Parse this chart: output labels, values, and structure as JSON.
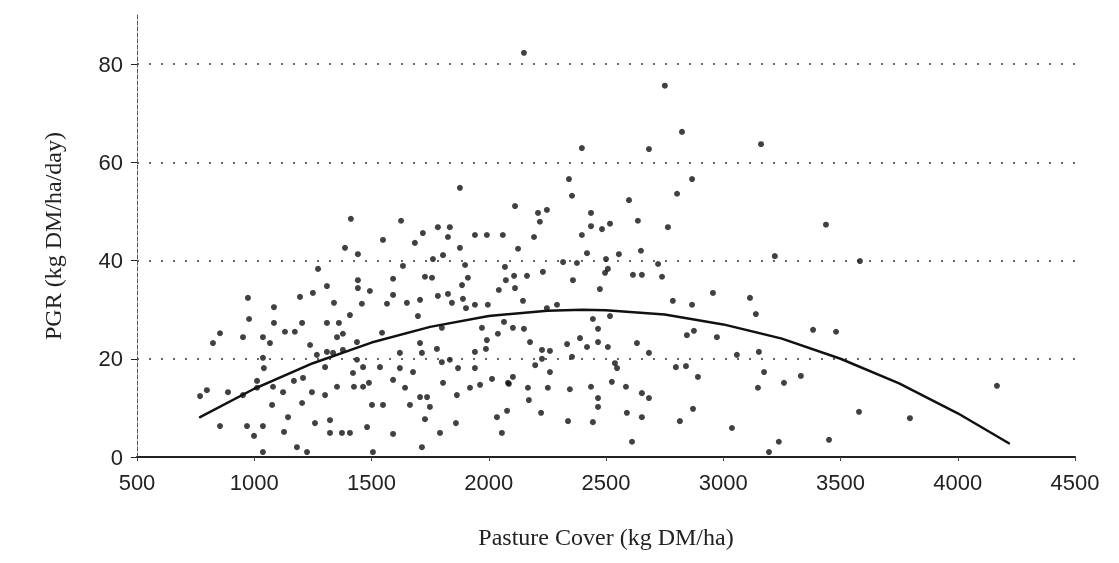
{
  "chart_data": {
    "type": "scatter",
    "xlabel": "Pasture Cover (kg DM/ha)",
    "ylabel": "PGR (kg DM/ha/day)",
    "xlim": [
      500,
      4500
    ],
    "xticks": [
      500,
      1000,
      1500,
      2000,
      2500,
      3000,
      3500,
      4000,
      4500
    ],
    "ylim": [
      0,
      90
    ],
    "yticks": [
      0,
      20,
      40,
      60,
      80
    ],
    "grid": "y",
    "series": [
      {
        "color": "#111111",
        "marker": "circle",
        "x": [
          769,
          798,
          888,
          854,
          824,
          854,
          973,
          978,
          952,
          969,
          999,
          1037,
          1037,
          1037,
          1041,
          1037,
          1076,
          1084,
          1084,
          1131,
          1173,
          1204,
          1195,
          1127,
          1144,
          1182,
          1225,
          1250,
          1272,
          1310,
          1340,
          1310,
          1361,
          1378,
          1259,
          1323,
          1323,
          1374,
          1408,
          1481,
          1506,
          1592,
          1715,
          1792,
          1728,
          1664,
          1707,
          1749,
          1549,
          1502,
          1464,
          1425,
          1353,
          1302,
          1246,
          1204,
          1080,
          1408,
          1387,
          1412,
          1442,
          1442,
          1442,
          1459,
          1493,
          1549,
          1566,
          1592,
          1592,
          1545,
          1438,
          1438,
          1421,
          1464,
          1536,
          1592,
          1621,
          1677,
          1643,
          1621,
          1634,
          1626,
          1685,
          1719,
          1783,
          1834,
          1826,
          1805,
          1877,
          1877,
          1762,
          1651,
          1707,
          1698,
          1728,
          1758,
          1783,
          1826,
          1843,
          1886,
          1899,
          1911,
          1890,
          1903,
          1800,
          1707,
          1715,
          1779,
          1800,
          1834,
          1869,
          1941,
          1941,
          1988,
          1992,
          1971,
          2039,
          2069,
          2073,
          2043,
          1941,
          1992,
          2060,
          1941,
          1996,
          2082,
          1920,
          1963,
          2014,
          1805,
          1864,
          2035,
          2056,
          1860,
          1737,
          1489,
          1169,
          1123,
          1012,
          952,
          1012,
          1208,
          1267,
          1238,
          1310,
          1336,
          1378,
          1302,
          1067,
          1353,
          2150,
          2751,
          2824,
          3161,
          2397,
          2683,
          2342,
          2867,
          2355,
          2803,
          2112,
          2598,
          2210,
          2248,
          2218,
          2436,
          2636,
          2764,
          2436,
          2483,
          2517,
          2397,
          2193,
          2125,
          2419,
          2555,
          2649,
          2317,
          2376,
          2500,
          2722,
          3220,
          2231,
          2163,
          2108,
          2359,
          2508,
          2496,
          2615,
          2653,
          2739,
          2112,
          2474,
          2146,
          2785,
          2956,
          3114,
          2867,
          2248,
          2291,
          3139,
          2517,
          2444,
          2065,
          2466,
          2103,
          2150,
          2845,
          2875,
          2973,
          2176,
          2389,
          2466,
          2632,
          2334,
          2419,
          2508,
          2227,
          2261,
          2683,
          3152,
          3058,
          2355,
          2227,
          2538,
          2198,
          2547,
          2798,
          2841,
          2261,
          3174,
          3331,
          2103,
          2892,
          2525,
          2086,
          3259,
          2167,
          2252,
          2346,
          2436,
          2585,
          3148,
          2653,
          2683,
          2466,
          2171,
          2466,
          2078,
          2223,
          2589,
          2871,
          2653,
          2338,
          2444,
          2815,
          3037,
          2611,
          3237,
          3195,
          3438,
          3583,
          3383,
          3481,
          3579,
          3796,
          3451,
          4167
        ],
        "values": [
          12.4,
          13.6,
          13.2,
          6.3,
          23.2,
          25.2,
          32.4,
          28.1,
          24.4,
          6.3,
          4.3,
          6.3,
          1.0,
          20.2,
          18.1,
          24.4,
          10.6,
          30.5,
          27.3,
          25.5,
          25.5,
          27.3,
          32.6,
          5.1,
          8.1,
          2.0,
          1.0,
          33.4,
          38.3,
          34.8,
          31.4,
          27.3,
          27.3,
          25.1,
          6.9,
          7.5,
          4.9,
          4.9,
          4.9,
          6.1,
          1.0,
          4.7,
          2.0,
          4.9,
          7.7,
          10.6,
          12.2,
          10.2,
          10.6,
          10.6,
          14.3,
          14.3,
          14.3,
          12.6,
          13.2,
          11.0,
          14.3,
          28.9,
          42.6,
          48.5,
          41.3,
          36.0,
          34.4,
          31.2,
          33.8,
          44.2,
          31.2,
          33.0,
          36.3,
          25.3,
          23.4,
          19.8,
          17.1,
          18.3,
          18.3,
          15.7,
          18.1,
          17.3,
          14.1,
          21.2,
          38.9,
          48.1,
          43.6,
          45.6,
          46.8,
          46.8,
          44.8,
          41.1,
          42.6,
          54.8,
          40.3,
          31.4,
          32.0,
          28.7,
          36.7,
          36.5,
          32.8,
          33.2,
          31.4,
          35.0,
          39.1,
          36.5,
          32.2,
          30.3,
          26.3,
          23.2,
          21.2,
          22.0,
          19.3,
          19.8,
          18.1,
          21.4,
          18.1,
          22.0,
          23.8,
          26.3,
          25.1,
          38.7,
          36.0,
          34.0,
          45.2,
          45.2,
          45.2,
          31.0,
          31.0,
          15.1,
          14.1,
          14.7,
          15.9,
          15.1,
          12.6,
          8.1,
          4.9,
          6.9,
          12.2,
          15.1,
          15.5,
          13.2,
          14.1,
          12.6,
          15.5,
          16.1,
          20.8,
          22.8,
          21.4,
          21.2,
          21.8,
          18.3,
          23.2,
          24.4,
          82.3,
          75.6,
          66.2,
          63.7,
          62.9,
          62.7,
          56.6,
          56.6,
          53.2,
          53.6,
          51.1,
          52.3,
          49.7,
          50.3,
          47.9,
          49.7,
          48.1,
          46.8,
          47.0,
          46.4,
          47.5,
          45.2,
          44.8,
          42.4,
          41.5,
          41.3,
          42.0,
          39.7,
          39.5,
          40.3,
          39.3,
          40.9,
          37.7,
          36.9,
          36.9,
          36.0,
          38.3,
          37.5,
          37.1,
          37.1,
          36.7,
          34.4,
          34.2,
          31.8,
          31.8,
          33.4,
          32.4,
          31.0,
          30.3,
          31.0,
          29.1,
          28.7,
          28.1,
          27.5,
          26.1,
          26.3,
          26.1,
          24.8,
          25.7,
          24.4,
          23.4,
          24.2,
          23.4,
          23.2,
          23.0,
          22.4,
          22.4,
          21.8,
          21.6,
          21.2,
          21.4,
          20.8,
          20.4,
          20.0,
          19.1,
          18.7,
          18.1,
          18.3,
          18.5,
          17.3,
          17.3,
          16.5,
          16.3,
          16.3,
          15.3,
          14.9,
          15.1,
          14.1,
          14.1,
          13.8,
          14.3,
          14.3,
          14.1,
          13.0,
          12.0,
          12.0,
          11.6,
          10.2,
          9.4,
          9.0,
          9.0,
          9.8,
          8.1,
          7.3,
          7.1,
          7.3,
          5.9,
          3.1,
          3.1,
          1.0,
          47.3,
          39.9,
          25.9,
          25.5,
          9.2,
          7.9,
          3.5,
          14.5
        ]
      },
      {
        "type": "line",
        "color": "#111111",
        "marker": "none",
        "line_style": "solid",
        "x": [
          769,
          1000,
          1250,
          1500,
          1750,
          2000,
          2250,
          2400,
          2500,
          2750,
          3000,
          3250,
          3500,
          3750,
          4000,
          4218
        ],
        "values": [
          8.1,
          13.9,
          19.1,
          23.3,
          26.5,
          28.7,
          29.8,
          30.0,
          29.9,
          29.0,
          27.0,
          24.1,
          20.0,
          15.0,
          8.9,
          2.8
        ]
      }
    ]
  }
}
